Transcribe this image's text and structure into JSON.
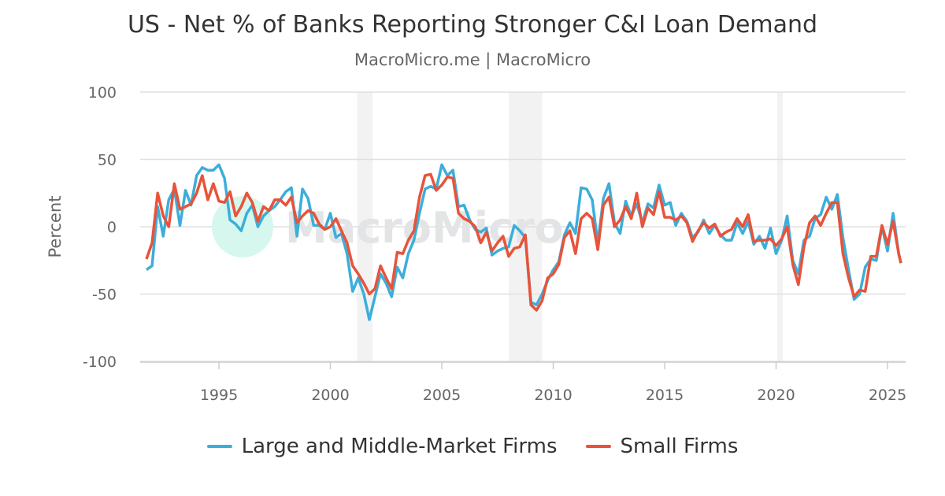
{
  "chart_data": {
    "type": "line",
    "title": "US - Net % of Banks Reporting Stronger C&I Loan Demand",
    "subtitle": "MacroMicro.me | MacroMicro",
    "xlabel": "",
    "ylabel": "Percent",
    "xlim": [
      1991.5,
      2025.8
    ],
    "ylim": [
      -100,
      100
    ],
    "x_ticks": [
      "1995",
      "2000",
      "2005",
      "2010",
      "2015",
      "2020",
      "2025"
    ],
    "y_ticks": [
      "100",
      "50",
      "0",
      "-50",
      "-100"
    ],
    "grid": "horizontal",
    "legend_position": "bottom",
    "watermark": "MacroMicro",
    "recession_shading": [
      [
        2001.2,
        2001.9
      ],
      [
        2008.0,
        2009.5
      ],
      [
        2020.05,
        2020.3
      ]
    ],
    "series": [
      {
        "name": "Large and Middle-Market Firms",
        "color": "#3CAEDA",
        "points": [
          [
            1991.75,
            -32
          ],
          [
            1992,
            -29
          ],
          [
            1992.25,
            15
          ],
          [
            1992.5,
            -7
          ],
          [
            1992.75,
            20
          ],
          [
            1993,
            28
          ],
          [
            1993.25,
            1
          ],
          [
            1993.5,
            27
          ],
          [
            1993.75,
            16
          ],
          [
            1994,
            38
          ],
          [
            1994.25,
            44
          ],
          [
            1994.5,
            42
          ],
          [
            1994.75,
            42
          ],
          [
            1995,
            46
          ],
          [
            1995.25,
            36
          ],
          [
            1995.5,
            5
          ],
          [
            1995.75,
            2
          ],
          [
            1996,
            -3
          ],
          [
            1996.25,
            10
          ],
          [
            1996.5,
            16
          ],
          [
            1996.75,
            0
          ],
          [
            1997,
            8
          ],
          [
            1997.25,
            12
          ],
          [
            1997.5,
            15
          ],
          [
            1997.75,
            20
          ],
          [
            1998,
            26
          ],
          [
            1998.25,
            29
          ],
          [
            1998.5,
            -7
          ],
          [
            1998.75,
            28
          ],
          [
            1999,
            21
          ],
          [
            1999.25,
            1
          ],
          [
            1999.5,
            1
          ],
          [
            1999.75,
            -2
          ],
          [
            2000,
            10
          ],
          [
            2000.25,
            -8
          ],
          [
            2000.5,
            -5
          ],
          [
            2000.75,
            -20
          ],
          [
            2001,
            -48
          ],
          [
            2001.25,
            -38
          ],
          [
            2001.5,
            -50
          ],
          [
            2001.75,
            -69
          ],
          [
            2002,
            -52
          ],
          [
            2002.25,
            -35
          ],
          [
            2002.5,
            -42
          ],
          [
            2002.75,
            -52
          ],
          [
            2003,
            -30
          ],
          [
            2003.25,
            -38
          ],
          [
            2003.5,
            -20
          ],
          [
            2003.75,
            -10
          ],
          [
            2004,
            10
          ],
          [
            2004.25,
            28
          ],
          [
            2004.5,
            30
          ],
          [
            2004.75,
            28
          ],
          [
            2005,
            46
          ],
          [
            2005.25,
            38
          ],
          [
            2005.5,
            42
          ],
          [
            2005.75,
            15
          ],
          [
            2006,
            16
          ],
          [
            2006.25,
            5
          ],
          [
            2006.5,
            -2
          ],
          [
            2006.75,
            -4
          ],
          [
            2007,
            -1
          ],
          [
            2007.25,
            -21
          ],
          [
            2007.5,
            -18
          ],
          [
            2007.75,
            -16
          ],
          [
            2008,
            -15
          ],
          [
            2008.25,
            1
          ],
          [
            2008.5,
            -3
          ],
          [
            2008.75,
            -8
          ],
          [
            2009,
            -56
          ],
          [
            2009.25,
            -58
          ],
          [
            2009.5,
            -50
          ],
          [
            2009.75,
            -40
          ],
          [
            2010,
            -32
          ],
          [
            2010.25,
            -26
          ],
          [
            2010.5,
            -6
          ],
          [
            2010.75,
            3
          ],
          [
            2011,
            -5
          ],
          [
            2011.25,
            29
          ],
          [
            2011.5,
            28
          ],
          [
            2011.75,
            20
          ],
          [
            2012,
            -12
          ],
          [
            2012.25,
            21
          ],
          [
            2012.5,
            32
          ],
          [
            2012.75,
            3
          ],
          [
            2013,
            -5
          ],
          [
            2013.25,
            19
          ],
          [
            2013.5,
            8
          ],
          [
            2013.75,
            17
          ],
          [
            2014,
            3
          ],
          [
            2014.25,
            17
          ],
          [
            2014.5,
            14
          ],
          [
            2014.75,
            31
          ],
          [
            2015,
            16
          ],
          [
            2015.25,
            18
          ],
          [
            2015.5,
            1
          ],
          [
            2015.75,
            10
          ],
          [
            2016,
            4
          ],
          [
            2016.25,
            -8
          ],
          [
            2016.5,
            -4
          ],
          [
            2016.75,
            5
          ],
          [
            2017,
            -5
          ],
          [
            2017.25,
            1
          ],
          [
            2017.5,
            -6
          ],
          [
            2017.75,
            -10
          ],
          [
            2018,
            -10
          ],
          [
            2018.25,
            3
          ],
          [
            2018.5,
            -5
          ],
          [
            2018.75,
            4
          ],
          [
            2019,
            -13
          ],
          [
            2019.25,
            -7
          ],
          [
            2019.5,
            -16
          ],
          [
            2019.75,
            -1
          ],
          [
            2020,
            -20
          ],
          [
            2020.25,
            -10
          ],
          [
            2020.5,
            8
          ],
          [
            2020.75,
            -25
          ],
          [
            2021,
            -35
          ],
          [
            2021.25,
            -10
          ],
          [
            2021.5,
            -7
          ],
          [
            2021.75,
            6
          ],
          [
            2022,
            9
          ],
          [
            2022.25,
            22
          ],
          [
            2022.5,
            13
          ],
          [
            2022.75,
            24
          ],
          [
            2023,
            -8
          ],
          [
            2023.25,
            -32
          ],
          [
            2023.5,
            -54
          ],
          [
            2023.75,
            -50
          ],
          [
            2024,
            -30
          ],
          [
            2024.25,
            -24
          ],
          [
            2024.5,
            -25
          ],
          [
            2024.75,
            0
          ],
          [
            2025,
            -18
          ],
          [
            2025.25,
            10
          ],
          [
            2025.5,
            -20
          ],
          [
            2025.6,
            -27
          ]
        ]
      },
      {
        "name": "Small Firms",
        "color": "#E8533A",
        "points": [
          [
            1991.75,
            -24
          ],
          [
            1992,
            -12
          ],
          [
            1992.25,
            25
          ],
          [
            1992.5,
            8
          ],
          [
            1992.75,
            0
          ],
          [
            1993,
            32
          ],
          [
            1993.25,
            13
          ],
          [
            1993.5,
            15
          ],
          [
            1993.75,
            17
          ],
          [
            1994,
            25
          ],
          [
            1994.25,
            38
          ],
          [
            1994.5,
            20
          ],
          [
            1994.75,
            32
          ],
          [
            1995,
            19
          ],
          [
            1995.25,
            18
          ],
          [
            1995.5,
            26
          ],
          [
            1995.75,
            8
          ],
          [
            1996,
            15
          ],
          [
            1996.25,
            25
          ],
          [
            1996.5,
            18
          ],
          [
            1996.75,
            4
          ],
          [
            1997,
            15
          ],
          [
            1997.25,
            12
          ],
          [
            1997.5,
            20
          ],
          [
            1997.75,
            20
          ],
          [
            1998,
            16
          ],
          [
            1998.25,
            22
          ],
          [
            1998.5,
            3
          ],
          [
            1998.75,
            8
          ],
          [
            1999,
            12
          ],
          [
            1999.25,
            10
          ],
          [
            1999.5,
            2
          ],
          [
            1999.75,
            -2
          ],
          [
            2000,
            0
          ],
          [
            2000.25,
            6
          ],
          [
            2000.5,
            -3
          ],
          [
            2000.75,
            -12
          ],
          [
            2001,
            -29
          ],
          [
            2001.25,
            -35
          ],
          [
            2001.5,
            -42
          ],
          [
            2001.75,
            -50
          ],
          [
            2002,
            -46
          ],
          [
            2002.25,
            -29
          ],
          [
            2002.5,
            -38
          ],
          [
            2002.75,
            -46
          ],
          [
            2003,
            -19
          ],
          [
            2003.25,
            -20
          ],
          [
            2003.5,
            -10
          ],
          [
            2003.75,
            -3
          ],
          [
            2004,
            22
          ],
          [
            2004.25,
            38
          ],
          [
            2004.5,
            39
          ],
          [
            2004.75,
            27
          ],
          [
            2005,
            31
          ],
          [
            2005.25,
            37
          ],
          [
            2005.5,
            36
          ],
          [
            2005.75,
            10
          ],
          [
            2006,
            6
          ],
          [
            2006.25,
            4
          ],
          [
            2006.5,
            0
          ],
          [
            2006.75,
            -12
          ],
          [
            2007,
            -4
          ],
          [
            2007.25,
            -18
          ],
          [
            2007.5,
            -12
          ],
          [
            2007.75,
            -7
          ],
          [
            2008,
            -22
          ],
          [
            2008.25,
            -16
          ],
          [
            2008.5,
            -15
          ],
          [
            2008.75,
            -6
          ],
          [
            2009,
            -58
          ],
          [
            2009.25,
            -62
          ],
          [
            2009.5,
            -55
          ],
          [
            2009.75,
            -38
          ],
          [
            2010,
            -35
          ],
          [
            2010.25,
            -28
          ],
          [
            2010.5,
            -8
          ],
          [
            2010.75,
            -3
          ],
          [
            2011,
            -20
          ],
          [
            2011.25,
            6
          ],
          [
            2011.5,
            10
          ],
          [
            2011.75,
            6
          ],
          [
            2012,
            -17
          ],
          [
            2012.25,
            16
          ],
          [
            2012.5,
            22
          ],
          [
            2012.75,
            0
          ],
          [
            2013,
            5
          ],
          [
            2013.25,
            15
          ],
          [
            2013.5,
            6
          ],
          [
            2013.75,
            25
          ],
          [
            2014,
            0
          ],
          [
            2014.25,
            14
          ],
          [
            2014.5,
            9
          ],
          [
            2014.75,
            26
          ],
          [
            2015,
            7
          ],
          [
            2015.25,
            7
          ],
          [
            2015.5,
            5
          ],
          [
            2015.75,
            8
          ],
          [
            2016,
            3
          ],
          [
            2016.25,
            -11
          ],
          [
            2016.5,
            -3
          ],
          [
            2016.75,
            3
          ],
          [
            2017,
            -1
          ],
          [
            2017.25,
            2
          ],
          [
            2017.5,
            -7
          ],
          [
            2017.75,
            -4
          ],
          [
            2018,
            -2
          ],
          [
            2018.25,
            6
          ],
          [
            2018.5,
            0
          ],
          [
            2018.75,
            9
          ],
          [
            2019,
            -11
          ],
          [
            2019.25,
            -10
          ],
          [
            2019.5,
            -10
          ],
          [
            2019.75,
            -9
          ],
          [
            2020,
            -14
          ],
          [
            2020.25,
            -9
          ],
          [
            2020.5,
            0
          ],
          [
            2020.75,
            -28
          ],
          [
            2021,
            -43
          ],
          [
            2021.25,
            -15
          ],
          [
            2021.5,
            3
          ],
          [
            2021.75,
            8
          ],
          [
            2022,
            1
          ],
          [
            2022.25,
            10
          ],
          [
            2022.5,
            18
          ],
          [
            2022.75,
            18
          ],
          [
            2023,
            -20
          ],
          [
            2023.25,
            -38
          ],
          [
            2023.5,
            -52
          ],
          [
            2023.75,
            -47
          ],
          [
            2024,
            -48
          ],
          [
            2024.25,
            -22
          ],
          [
            2024.5,
            -22
          ],
          [
            2024.75,
            1
          ],
          [
            2025,
            -13
          ],
          [
            2025.25,
            4
          ],
          [
            2025.5,
            -20
          ],
          [
            2025.6,
            -27
          ]
        ]
      }
    ]
  }
}
